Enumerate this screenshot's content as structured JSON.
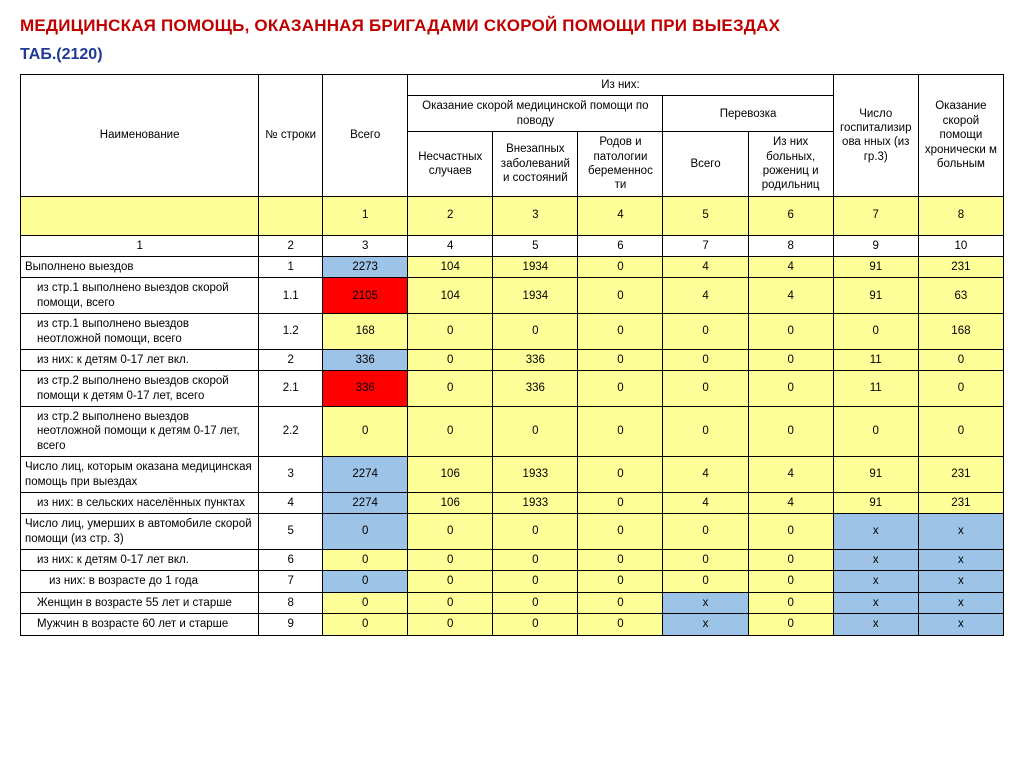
{
  "title": "МЕДИЦИНСКАЯ ПОМОЩЬ, ОКАЗАННАЯ БРИГАДАМИ СКОРОЙ ПОМОЩИ ПРИ ВЫЕЗДАХ",
  "subtitle": "ТАБ.(2120)",
  "headers": {
    "name": "Наименование",
    "rownum": "№ строки",
    "total": "Всего",
    "ofthem": "Из них:",
    "aid_reason": "Оказание скорой медицинской помощи по поводу",
    "transport": "Перевозка",
    "hospitalized": "Число госпитализирова нных (из гр.3)",
    "chronic": "Оказание скорой помощи хронически м больным",
    "accidents": "Несчастных случаев",
    "sudden": "Внезапных заболеваний и состояний",
    "births": "Родов и патологии беременнос ти",
    "tr_total": "Всего",
    "tr_sick": "Из них больных, рожениц и родильниц"
  },
  "colIndexYellow": [
    "",
    "",
    "1",
    "2",
    "3",
    "4",
    "5",
    "6",
    "7",
    "8"
  ],
  "colIndexWhite": [
    "1",
    "2",
    "3",
    "4",
    "5",
    "6",
    "7",
    "8",
    "9",
    "10"
  ],
  "rows": [
    {
      "name": "Выполнено выездов",
      "indent": 0,
      "num": "1",
      "cells": [
        {
          "v": "2273",
          "c": "blue"
        },
        {
          "v": "104",
          "c": "yellow"
        },
        {
          "v": "1934",
          "c": "yellow"
        },
        {
          "v": "0",
          "c": "yellow"
        },
        {
          "v": "4",
          "c": "yellow"
        },
        {
          "v": "4",
          "c": "yellow"
        },
        {
          "v": "91",
          "c": "yellow"
        },
        {
          "v": "231",
          "c": "yellow"
        }
      ]
    },
    {
      "name": "из стр.1 выполнено выездов скорой помощи, всего",
      "indent": 1,
      "num": "1.1",
      "cells": [
        {
          "v": "2105",
          "c": "red"
        },
        {
          "v": "104",
          "c": "yellow"
        },
        {
          "v": "1934",
          "c": "yellow"
        },
        {
          "v": "0",
          "c": "yellow"
        },
        {
          "v": "4",
          "c": "yellow"
        },
        {
          "v": "4",
          "c": "yellow"
        },
        {
          "v": "91",
          "c": "yellow"
        },
        {
          "v": "63",
          "c": "yellow"
        }
      ]
    },
    {
      "name": "из стр.1 выполнено выездов неотложной помощи, всего",
      "indent": 1,
      "num": "1.2",
      "cells": [
        {
          "v": "168",
          "c": "yellow"
        },
        {
          "v": "0",
          "c": "yellow"
        },
        {
          "v": "0",
          "c": "yellow"
        },
        {
          "v": "0",
          "c": "yellow"
        },
        {
          "v": "0",
          "c": "yellow"
        },
        {
          "v": "0",
          "c": "yellow"
        },
        {
          "v": "0",
          "c": "yellow"
        },
        {
          "v": "168",
          "c": "yellow"
        }
      ]
    },
    {
      "name": "из них: к детям 0-17 лет вкл.",
      "indent": 1,
      "num": "2",
      "cells": [
        {
          "v": "336",
          "c": "blue"
        },
        {
          "v": "0",
          "c": "yellow"
        },
        {
          "v": "336",
          "c": "yellow"
        },
        {
          "v": "0",
          "c": "yellow"
        },
        {
          "v": "0",
          "c": "yellow"
        },
        {
          "v": "0",
          "c": "yellow"
        },
        {
          "v": "11",
          "c": "yellow"
        },
        {
          "v": "0",
          "c": "yellow"
        }
      ]
    },
    {
      "name": "из стр.2 выполнено выездов скорой помощи к детям 0-17 лет, всего",
      "indent": 1,
      "num": "2.1",
      "cells": [
        {
          "v": "336",
          "c": "red"
        },
        {
          "v": "0",
          "c": "yellow"
        },
        {
          "v": "336",
          "c": "yellow"
        },
        {
          "v": "0",
          "c": "yellow"
        },
        {
          "v": "0",
          "c": "yellow"
        },
        {
          "v": "0",
          "c": "yellow"
        },
        {
          "v": "11",
          "c": "yellow"
        },
        {
          "v": "0",
          "c": "yellow"
        }
      ]
    },
    {
      "name": "из стр.2 выполнено выездов неотложной помощи к детям 0-17 лет, всего",
      "indent": 1,
      "num": "2.2",
      "cells": [
        {
          "v": "0",
          "c": "yellow"
        },
        {
          "v": "0",
          "c": "yellow"
        },
        {
          "v": "0",
          "c": "yellow"
        },
        {
          "v": "0",
          "c": "yellow"
        },
        {
          "v": "0",
          "c": "yellow"
        },
        {
          "v": "0",
          "c": "yellow"
        },
        {
          "v": "0",
          "c": "yellow"
        },
        {
          "v": "0",
          "c": "yellow"
        }
      ]
    },
    {
      "name": "Число лиц, которым оказана медицинская помощь при выездах",
      "indent": 0,
      "num": "3",
      "cells": [
        {
          "v": "2274",
          "c": "blue"
        },
        {
          "v": "106",
          "c": "yellow"
        },
        {
          "v": "1933",
          "c": "yellow"
        },
        {
          "v": "0",
          "c": "yellow"
        },
        {
          "v": "4",
          "c": "yellow"
        },
        {
          "v": "4",
          "c": "yellow"
        },
        {
          "v": "91",
          "c": "yellow"
        },
        {
          "v": "231",
          "c": "yellow"
        }
      ]
    },
    {
      "name": "из них: в сельских населённых пунктах",
      "indent": 1,
      "num": "4",
      "cells": [
        {
          "v": "2274",
          "c": "blue"
        },
        {
          "v": "106",
          "c": "yellow"
        },
        {
          "v": "1933",
          "c": "yellow"
        },
        {
          "v": "0",
          "c": "yellow"
        },
        {
          "v": "4",
          "c": "yellow"
        },
        {
          "v": "4",
          "c": "yellow"
        },
        {
          "v": "91",
          "c": "yellow"
        },
        {
          "v": "231",
          "c": "yellow"
        }
      ]
    },
    {
      "name": "Число лиц, умерших в автомобиле скорой помощи (из стр. 3)",
      "indent": 0,
      "num": "5",
      "cells": [
        {
          "v": "0",
          "c": "blue"
        },
        {
          "v": "0",
          "c": "yellow"
        },
        {
          "v": "0",
          "c": "yellow"
        },
        {
          "v": "0",
          "c": "yellow"
        },
        {
          "v": "0",
          "c": "yellow"
        },
        {
          "v": "0",
          "c": "yellow"
        },
        {
          "v": "x",
          "c": "blue"
        },
        {
          "v": "x",
          "c": "blue"
        }
      ]
    },
    {
      "name": "из них: к детям 0-17 лет вкл.",
      "indent": 1,
      "num": "6",
      "cells": [
        {
          "v": "0",
          "c": "yellow"
        },
        {
          "v": "0",
          "c": "yellow"
        },
        {
          "v": "0",
          "c": "yellow"
        },
        {
          "v": "0",
          "c": "yellow"
        },
        {
          "v": "0",
          "c": "yellow"
        },
        {
          "v": "0",
          "c": "yellow"
        },
        {
          "v": "x",
          "c": "blue"
        },
        {
          "v": "x",
          "c": "blue"
        }
      ]
    },
    {
      "name": "из них: в возрасте до 1 года",
      "indent": 2,
      "num": "7",
      "cells": [
        {
          "v": "0",
          "c": "blue"
        },
        {
          "v": "0",
          "c": "yellow"
        },
        {
          "v": "0",
          "c": "yellow"
        },
        {
          "v": "0",
          "c": "yellow"
        },
        {
          "v": "0",
          "c": "yellow"
        },
        {
          "v": "0",
          "c": "yellow"
        },
        {
          "v": "x",
          "c": "blue"
        },
        {
          "v": "x",
          "c": "blue"
        }
      ]
    },
    {
      "name": "Женщин в возрасте 55 лет и старше",
      "indent": 1,
      "num": "8",
      "cells": [
        {
          "v": "0",
          "c": "yellow"
        },
        {
          "v": "0",
          "c": "yellow"
        },
        {
          "v": "0",
          "c": "yellow"
        },
        {
          "v": "0",
          "c": "yellow"
        },
        {
          "v": "x",
          "c": "blue"
        },
        {
          "v": "0",
          "c": "yellow"
        },
        {
          "v": "x",
          "c": "blue"
        },
        {
          "v": "x",
          "c": "blue"
        }
      ]
    },
    {
      "name": "Мужчин в возрасте 60 лет и старше",
      "indent": 1,
      "num": "9",
      "cells": [
        {
          "v": "0",
          "c": "yellow"
        },
        {
          "v": "0",
          "c": "yellow"
        },
        {
          "v": "0",
          "c": "yellow"
        },
        {
          "v": "0",
          "c": "yellow"
        },
        {
          "v": "x",
          "c": "blue"
        },
        {
          "v": "0",
          "c": "yellow"
        },
        {
          "v": "x",
          "c": "blue"
        },
        {
          "v": "x",
          "c": "blue"
        }
      ]
    }
  ]
}
